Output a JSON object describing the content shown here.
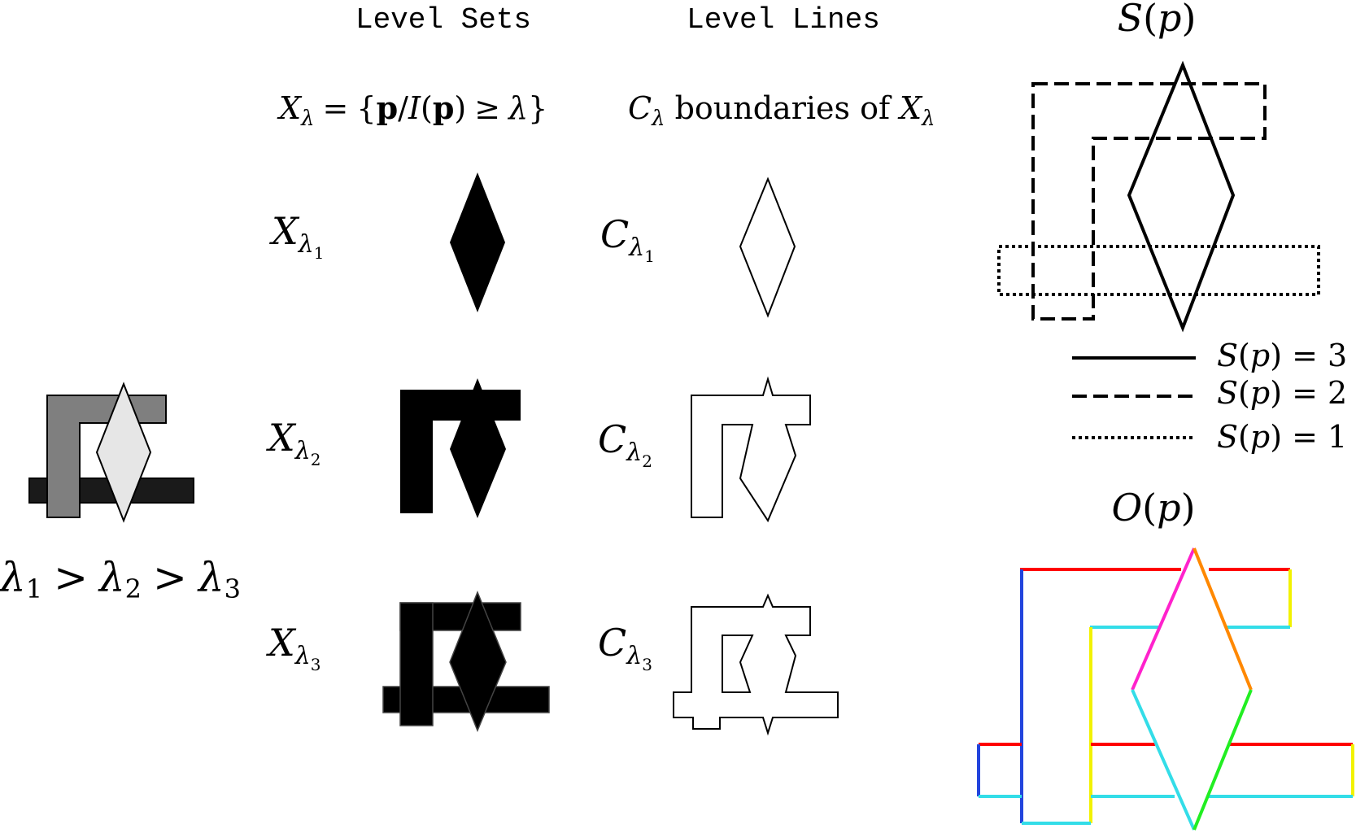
{
  "headers": {
    "level_sets": "Level Sets",
    "level_lines": "Level Lines",
    "sp": {
      "func": "S",
      "arg": "p"
    },
    "op": {
      "func": "O",
      "arg": "p"
    }
  },
  "definitions": {
    "set": {
      "X": "X",
      "lambda": "λ",
      "eq": "=",
      "lbrace": "{",
      "p": "p",
      "slash": "/",
      "I": "I",
      "lparen": "(",
      "rparen": ")",
      "geq": "≥",
      "rbrace": "}"
    },
    "lines": {
      "C": "C",
      "lambda": "λ",
      "text": "boundaries of",
      "X": "X"
    }
  },
  "rows": [
    {
      "set_symbol": "X",
      "line_symbol": "C",
      "lambda": "λ",
      "subscript": "1"
    },
    {
      "set_symbol": "X",
      "line_symbol": "C",
      "lambda": "λ",
      "subscript": "2"
    },
    {
      "set_symbol": "X",
      "line_symbol": "C",
      "lambda": "λ",
      "subscript": "3"
    }
  ],
  "ordering": {
    "l1": "λ",
    "s1": "1",
    "gt1": ">",
    "l2": "λ",
    "s2": "2",
    "gt2": ">",
    "l3": "λ",
    "s3": "3"
  },
  "legend": [
    {
      "style": "solid",
      "func": "S",
      "arg": "p",
      "value": "3"
    },
    {
      "style": "dashed",
      "func": "S",
      "arg": "p",
      "value": "2"
    },
    {
      "style": "dotted",
      "func": "S",
      "arg": "p",
      "value": "1"
    }
  ],
  "colors": {
    "dark_gray": "#7f7f7f",
    "light_gray": "#e6e6e6",
    "near_black": "#1a1a1a",
    "red": "#ff0000",
    "blue": "#2244dd",
    "cyan": "#33dde8",
    "yellow": "#f2f200",
    "magenta": "#ff22cc",
    "orange": "#ff8800",
    "green": "#22ee22"
  }
}
